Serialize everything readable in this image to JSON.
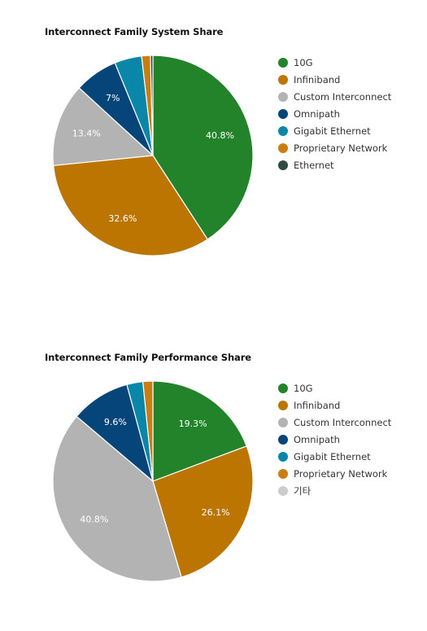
{
  "chart_data": [
    {
      "type": "pie",
      "title": "Interconnect Family System Share",
      "slices": [
        {
          "label": "10G",
          "value": 40.8,
          "color": "#22832a",
          "value_label": "40.8%"
        },
        {
          "label": "Infiniband",
          "value": 32.6,
          "color": "#bb7500",
          "value_label": "32.6%"
        },
        {
          "label": "Custom Interconnect",
          "value": 13.4,
          "color": "#b3b3b3",
          "value_label": "13.4%"
        },
        {
          "label": "Omnipath",
          "value": 7.0,
          "color": "#06457a",
          "value_label": "7%"
        },
        {
          "label": "Gigabit Ethernet",
          "value": 4.4,
          "color": "#0a87a8",
          "value_label": ""
        },
        {
          "label": "Proprietary Network",
          "value": 1.4,
          "color": "#c87e10",
          "value_label": ""
        },
        {
          "label": "Ethernet",
          "value": 0.4,
          "color": "#2f4a3f",
          "value_label": ""
        }
      ],
      "legend_position": "right"
    },
    {
      "type": "pie",
      "title": "Interconnect Family Performance Share",
      "slices": [
        {
          "label": "10G",
          "value": 19.3,
          "color": "#22832a",
          "value_label": "19.3%"
        },
        {
          "label": "Infiniband",
          "value": 26.1,
          "color": "#bb7500",
          "value_label": "26.1%"
        },
        {
          "label": "Custom Interconnect",
          "value": 40.8,
          "color": "#b3b3b3",
          "value_label": "40.8%"
        },
        {
          "label": "Omnipath",
          "value": 9.6,
          "color": "#06457a",
          "value_label": "9.6%"
        },
        {
          "label": "Gigabit Ethernet",
          "value": 2.6,
          "color": "#0a87a8",
          "value_label": ""
        },
        {
          "label": "Proprietary Network",
          "value": 1.6,
          "color": "#c87e10",
          "value_label": ""
        },
        {
          "label": "기타",
          "value": 0.0,
          "color": "#cccccc",
          "value_label": ""
        }
      ],
      "legend_position": "right"
    }
  ]
}
